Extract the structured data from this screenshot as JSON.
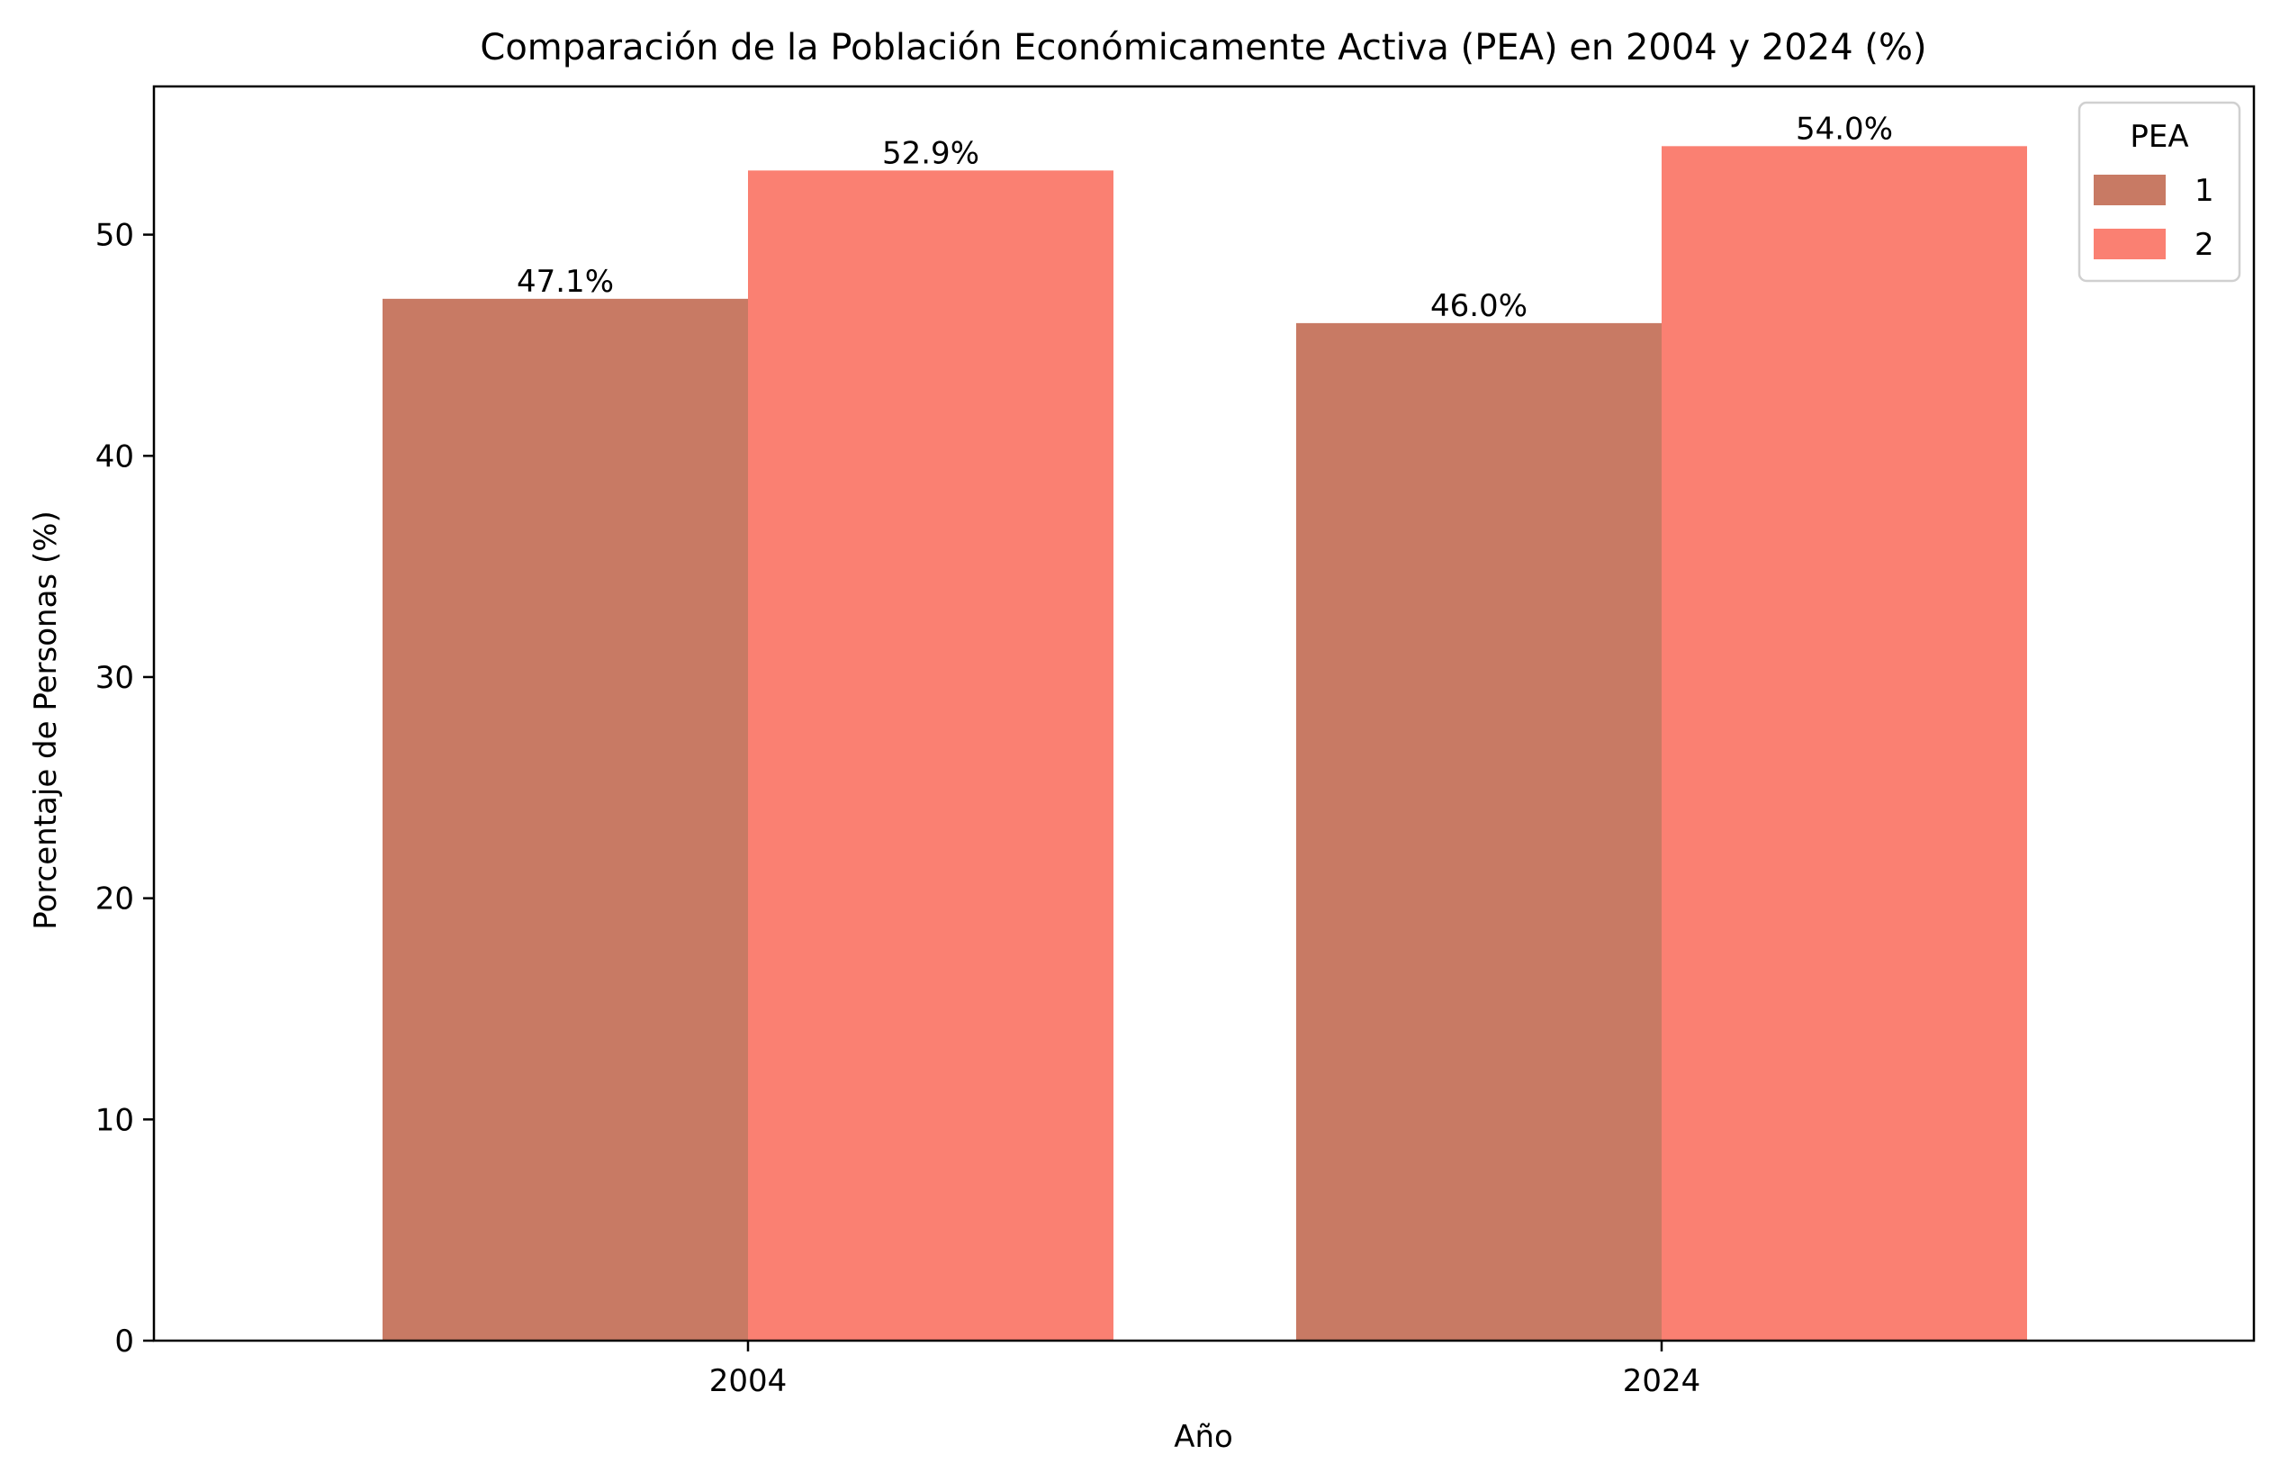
{
  "chart_data": {
    "type": "bar",
    "title": "Comparación de la Población Económicamente Activa (PEA) en 2004 y 2024 (%)",
    "xlabel": "Año",
    "ylabel": "Porcentaje de Personas (%)",
    "categories": [
      "2004",
      "2024"
    ],
    "ylim": [
      0,
      56.7
    ],
    "yticks": [
      0,
      10,
      20,
      30,
      40,
      50
    ],
    "grid": false,
    "legend": {
      "title": "PEA",
      "placement": "top-right"
    },
    "series": [
      {
        "name": "1",
        "color": "#c87a64",
        "values": [
          47.1,
          46.0
        ],
        "labels": [
          "47.1%",
          "46.0%"
        ]
      },
      {
        "name": "2",
        "color": "#fa8072",
        "values": [
          52.9,
          54.0
        ],
        "labels": [
          "52.9%",
          "54.0%"
        ]
      }
    ]
  }
}
